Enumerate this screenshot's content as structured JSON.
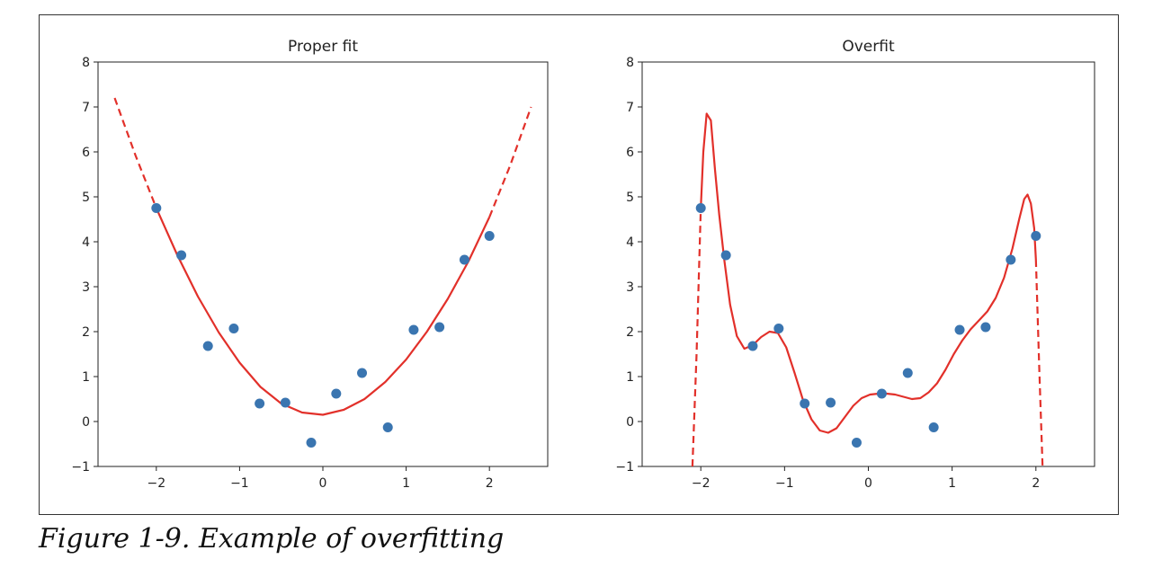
{
  "caption": "Figure 1-9. Example of overfitting",
  "colors": {
    "points": "#3a75b0",
    "fit": "#e2302a",
    "axes": "#222222",
    "frame": "#333333"
  },
  "chart_data": [
    {
      "type": "scatter",
      "title": "Proper fit",
      "xlim": [
        -2.7,
        2.7
      ],
      "ylim": [
        -1,
        8
      ],
      "xticks": [
        -2,
        -1,
        0,
        1,
        2
      ],
      "xtick_labels": [
        "−2",
        "−1",
        "0",
        "1",
        "2"
      ],
      "yticks": [
        -1,
        0,
        1,
        2,
        3,
        4,
        5,
        6,
        7,
        8
      ],
      "ytick_labels": [
        "−1",
        "0",
        "1",
        "2",
        "3",
        "4",
        "5",
        "6",
        "7",
        "8"
      ],
      "grid": false,
      "points": {
        "x": [
          -2.0,
          -1.7,
          -1.38,
          -1.07,
          -0.76,
          -0.45,
          -0.14,
          0.16,
          0.47,
          0.78,
          1.09,
          1.4,
          1.7,
          2.0
        ],
        "y": [
          4.75,
          3.7,
          1.68,
          2.07,
          0.4,
          0.42,
          -0.47,
          0.62,
          1.08,
          -0.13,
          2.04,
          2.1,
          3.6,
          4.13
        ]
      },
      "fit_curve": {
        "x": [
          -2.5,
          -2.25,
          -2.0,
          -1.75,
          -1.5,
          -1.25,
          -1.0,
          -0.75,
          -0.5,
          -0.25,
          0.0,
          0.25,
          0.5,
          0.75,
          1.0,
          1.25,
          1.5,
          1.75,
          2.0,
          2.25,
          2.5
        ],
        "y": [
          7.2,
          5.92,
          4.75,
          3.71,
          2.78,
          1.98,
          1.31,
          0.77,
          0.4,
          0.2,
          0.15,
          0.26,
          0.5,
          0.88,
          1.38,
          2.0,
          2.73,
          3.57,
          4.55,
          5.7,
          7.0
        ],
        "solid_range": [
          -2.0,
          2.0
        ]
      }
    },
    {
      "type": "scatter",
      "title": "Overfit",
      "xlim": [
        -2.7,
        2.7
      ],
      "ylim": [
        -1,
        8
      ],
      "xticks": [
        -2,
        -1,
        0,
        1,
        2
      ],
      "xtick_labels": [
        "−2",
        "−1",
        "0",
        "1",
        "2"
      ],
      "yticks": [
        -1,
        0,
        1,
        2,
        3,
        4,
        5,
        6,
        7,
        8
      ],
      "ytick_labels": [
        "−1",
        "0",
        "1",
        "2",
        "3",
        "4",
        "5",
        "6",
        "7",
        "8"
      ],
      "grid": false,
      "points": {
        "x": [
          -2.0,
          -1.7,
          -1.38,
          -1.07,
          -0.76,
          -0.45,
          -0.14,
          0.16,
          0.47,
          0.78,
          1.09,
          1.4,
          1.7,
          2.0
        ],
        "y": [
          4.75,
          3.7,
          1.68,
          2.07,
          0.4,
          0.42,
          -0.47,
          0.62,
          1.08,
          -0.13,
          2.04,
          2.1,
          3.6,
          4.13
        ]
      },
      "fit_curve": {
        "x": [
          -2.1,
          -2.05,
          -2.0,
          -1.97,
          -1.93,
          -1.88,
          -1.83,
          -1.78,
          -1.72,
          -1.65,
          -1.57,
          -1.48,
          -1.38,
          -1.28,
          -1.18,
          -1.08,
          -0.98,
          -0.88,
          -0.78,
          -0.68,
          -0.58,
          -0.48,
          -0.38,
          -0.28,
          -0.18,
          -0.08,
          0.02,
          0.12,
          0.22,
          0.32,
          0.42,
          0.52,
          0.62,
          0.72,
          0.82,
          0.92,
          1.02,
          1.12,
          1.22,
          1.32,
          1.42,
          1.52,
          1.62,
          1.72,
          1.8,
          1.86,
          1.9,
          1.94,
          1.98,
          2.0,
          2.04,
          2.08
        ],
        "y": [
          -1.0,
          1.5,
          4.75,
          6.0,
          6.85,
          6.7,
          5.6,
          4.6,
          3.6,
          2.6,
          1.9,
          1.62,
          1.7,
          1.88,
          2.0,
          1.97,
          1.65,
          1.08,
          0.48,
          0.05,
          -0.2,
          -0.25,
          -0.15,
          0.1,
          0.35,
          0.52,
          0.6,
          0.62,
          0.62,
          0.6,
          0.55,
          0.5,
          0.52,
          0.65,
          0.85,
          1.15,
          1.5,
          1.8,
          2.05,
          2.25,
          2.45,
          2.75,
          3.2,
          3.85,
          4.5,
          4.95,
          5.05,
          4.85,
          4.3,
          3.6,
          1.2,
          -1.0
        ],
        "solid_range": [
          -2.0,
          2.0
        ]
      }
    }
  ]
}
